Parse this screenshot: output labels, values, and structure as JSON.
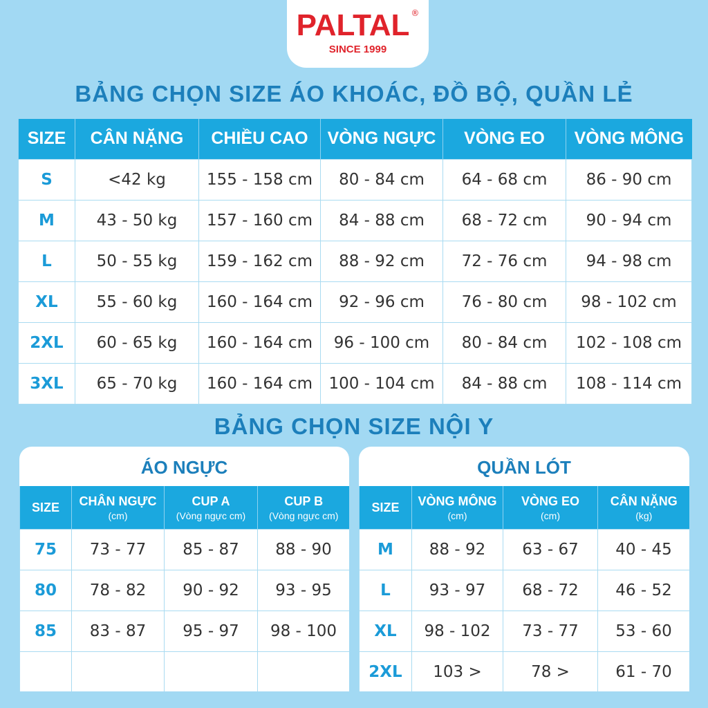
{
  "logo": {
    "brand": "PALTAL",
    "registered": "®",
    "since": "SINCE 1999"
  },
  "colors": {
    "background": "#a2d9f3",
    "header": "#1ba8df",
    "title": "#1c7fbb",
    "logo": "#e0232b"
  },
  "main_title": "BẢNG CHỌN SIZE ÁO KHOÁC, ĐỒ BỘ, QUẦN LẺ",
  "main_table": {
    "headers": [
      "SIZE",
      "CÂN NẶNG",
      "CHIỀU CAO",
      "VÒNG NGỰC",
      "VÒNG EO",
      "VÒNG MÔNG"
    ],
    "rows": [
      [
        "S",
        "<42 kg",
        "155 - 158 cm",
        "80 - 84 cm",
        "64 - 68 cm",
        "86 - 90 cm"
      ],
      [
        "M",
        "43 - 50 kg",
        "157 - 160 cm",
        "84 - 88 cm",
        "68 - 72 cm",
        "90 - 94 cm"
      ],
      [
        "L",
        "50 - 55 kg",
        "159 - 162 cm",
        "88 - 92 cm",
        "72 - 76 cm",
        "94 - 98 cm"
      ],
      [
        "XL",
        "55 - 60 kg",
        "160 - 164 cm",
        "92 - 96 cm",
        "76 - 80 cm",
        "98 - 102 cm"
      ],
      [
        "2XL",
        "60 - 65 kg",
        "160 - 164 cm",
        "96 - 100 cm",
        "80 - 84 cm",
        "102 - 108 cm"
      ],
      [
        "3XL",
        "65 - 70 kg",
        "160 - 164 cm",
        "100 - 104 cm",
        "84 - 88 cm",
        "108 - 114 cm"
      ]
    ]
  },
  "underwear_title": "BẢNG CHỌN SIZE NỘI Y",
  "bra": {
    "title": "ÁO NGỰC",
    "headers": [
      {
        "label": "SIZE",
        "sub": ""
      },
      {
        "label": "CHÂN NGỰC",
        "sub": "(cm)"
      },
      {
        "label": "CUP A",
        "sub": "(Vòng ngực cm)"
      },
      {
        "label": "CUP B",
        "sub": "(Vòng ngực cm)"
      }
    ],
    "rows": [
      [
        "75",
        "73 - 77",
        "85 - 87",
        "88 - 90"
      ],
      [
        "80",
        "78 - 82",
        "90 - 92",
        "93 - 95"
      ],
      [
        "85",
        "83 - 87",
        "95 - 97",
        "98 - 100"
      ],
      [
        "",
        "",
        "",
        ""
      ]
    ]
  },
  "panties": {
    "title": "QUẦN LÓT",
    "headers": [
      {
        "label": "SIZE",
        "sub": ""
      },
      {
        "label": "VÒNG MÔNG",
        "sub": "(cm)"
      },
      {
        "label": "VÒNG  EO",
        "sub": "(cm)"
      },
      {
        "label": "CÂN NẶNG",
        "sub": "(kg)"
      }
    ],
    "rows": [
      [
        "M",
        "88 - 92",
        "63 - 67",
        "40 - 45"
      ],
      [
        "L",
        "93 - 97",
        "68 - 72",
        "46 - 52"
      ],
      [
        "XL",
        "98 - 102",
        "73 - 77",
        "53 - 60"
      ],
      [
        "2XL",
        "103 >",
        "78 >",
        "61 - 70"
      ]
    ]
  }
}
